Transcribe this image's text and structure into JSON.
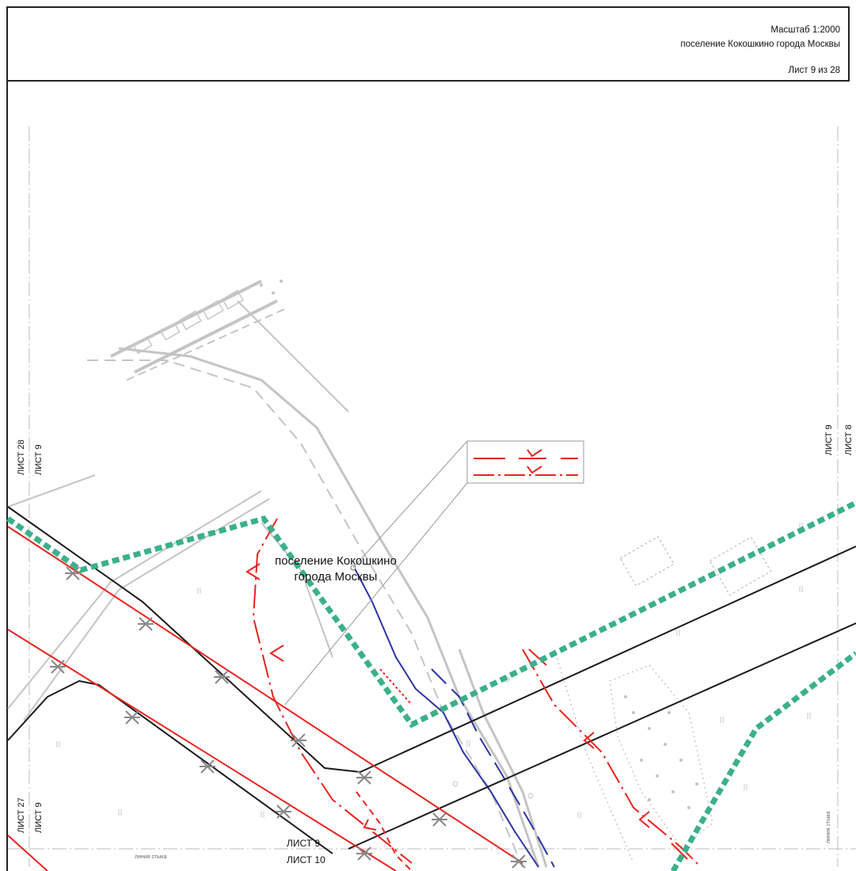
{
  "header": {
    "scale": "Масштаб 1:2000",
    "settlement": "поселение Кокошкино города Москвы",
    "sheet": "Лист 9 из 28"
  },
  "map": {
    "settlement_label_line1": "поселение Кокошкино",
    "settlement_label_line2": "города Москвы",
    "sheet_refs": {
      "left_top_a": "ЛИСТ 28",
      "left_top_b": "ЛИСТ 9",
      "left_bottom_a": "ЛИСТ 27",
      "left_bottom_b": "ЛИСТ 9",
      "right_a": "ЛИСТ 9",
      "right_b": "ЛИСТ 8",
      "bottom_a": "ЛИСТ 9",
      "bottom_b": "ЛИСТ 10"
    },
    "junction_line_label": "линия стыка",
    "colors": {
      "boundary_green": "#3bb08a",
      "red_line": "#e8231f",
      "blue_line": "#2a35a0",
      "black_line": "#1a1a1a",
      "grey_line": "#bdbdbd"
    }
  }
}
